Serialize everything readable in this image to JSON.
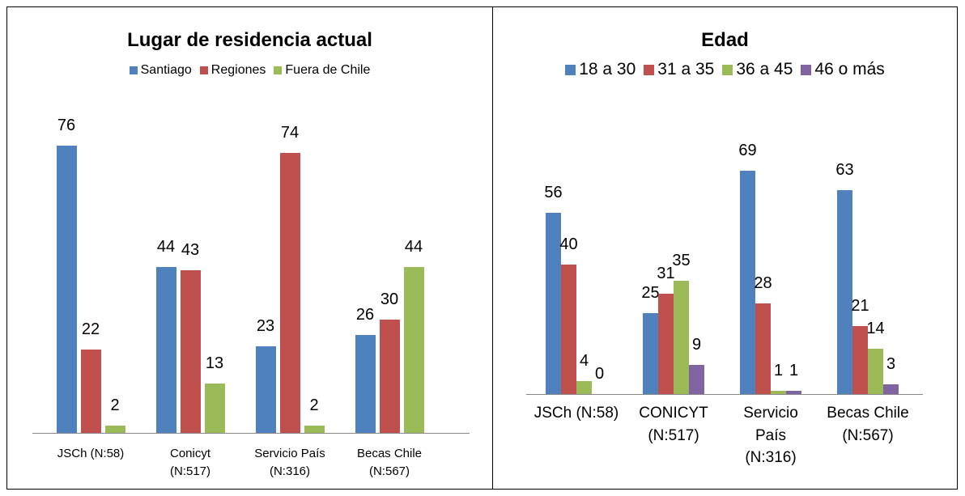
{
  "chart_data": [
    {
      "type": "bar",
      "title": "Lugar de residencia actual",
      "categories": [
        "JSCh (N:58)",
        "Conicyt\n(N:517)",
        "Servicio País\n(N:316)",
        "Becas Chile\n(N:567)"
      ],
      "series": [
        {
          "name": "Santiago",
          "color": "#4f81bd",
          "values": [
            76,
            44,
            23,
            26
          ]
        },
        {
          "name": "Regiones",
          "color": "#c0504d",
          "values": [
            22,
            43,
            74,
            30
          ]
        },
        {
          "name": "Fuera de Chile",
          "color": "#9bbb59",
          "values": [
            2,
            13,
            2,
            44
          ]
        }
      ]
    },
    {
      "type": "bar",
      "title": "Edad",
      "categories": [
        "JSCh (N:58)",
        "CONICYT\n(N:517)",
        "Servicio\nPaís\n(N:316)",
        "Becas Chile\n(N:567)"
      ],
      "series": [
        {
          "name": "18 a 30",
          "color": "#4f81bd",
          "values": [
            56,
            25,
            69,
            63
          ]
        },
        {
          "name": "31 a 35",
          "color": "#c0504d",
          "values": [
            40,
            31,
            28,
            21
          ]
        },
        {
          "name": "36 a 45",
          "color": "#9bbb59",
          "values": [
            4,
            35,
            1,
            14
          ]
        },
        {
          "name": "46 o más",
          "color": "#8064a2",
          "values": [
            0,
            9,
            1,
            3
          ]
        }
      ]
    }
  ]
}
